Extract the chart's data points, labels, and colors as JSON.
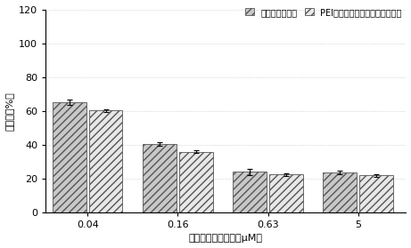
{
  "categories": [
    "0.04",
    "0.16",
    "0.63",
    "5"
  ],
  "series1_values": [
    65.5,
    40.5,
    24.0,
    23.5
  ],
  "series2_values": [
    60.5,
    36.0,
    22.5,
    22.0
  ],
  "series1_errors": [
    1.5,
    1.0,
    1.8,
    1.0
  ],
  "series2_errors": [
    0.8,
    0.6,
    0.8,
    0.8
  ],
  "series1_label": "柔红霉素脂质体",
  "series2_label": "PEI修饰的靶向性柔红霉素脂质体",
  "bar_color1": "#c8c8c8",
  "bar_color2": "#e8e8e8",
  "hatch1": "////",
  "hatch2": "////",
  "edgecolor": "#555555",
  "ylabel": "生存率（%）",
  "xlabel": "柔红霉素药物浓度（μM）",
  "ylim": [
    0,
    120
  ],
  "yticks": [
    0,
    20,
    40,
    60,
    80,
    100,
    120
  ],
  "background_color": "#ffffff",
  "bar_width": 0.28,
  "group_positions": [
    0.25,
    1.0,
    1.75,
    2.5
  ],
  "legend_fontsize": 7.0,
  "axis_fontsize": 8,
  "tick_fontsize": 8,
  "title_fontsize": 8
}
